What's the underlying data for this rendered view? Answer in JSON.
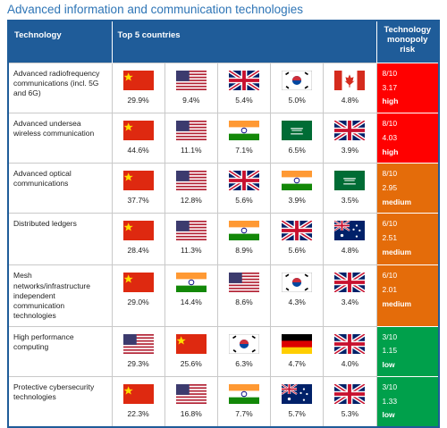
{
  "title": "Advanced information and communication technologies",
  "header": {
    "technology": "Technology",
    "countries": "Top 5 countries",
    "risk": "Technology monopoly risk"
  },
  "rows": [
    {
      "technology": "Advanced radiofrequency communications (incl. 5G and 6G)",
      "shares": [
        "29.9%",
        "9.4%",
        "5.4%",
        "5.0%",
        "4.8%"
      ],
      "risk_score": "8/10",
      "risk_index": "3.17",
      "risk_level": "high"
    },
    {
      "technology": "Advanced undersea wireless communication",
      "shares": [
        "44.6%",
        "11.1%",
        "7.1%",
        "6.5%",
        "3.9%"
      ],
      "risk_score": "8/10",
      "risk_index": "4.03",
      "risk_level": "high"
    },
    {
      "technology": "Advanced optical communications",
      "shares": [
        "37.7%",
        "12.8%",
        "5.6%",
        "3.9%",
        "3.5%"
      ],
      "risk_score": "8/10",
      "risk_index": "2.95",
      "risk_level": "medium"
    },
    {
      "technology": "Distributed ledgers",
      "shares": [
        "28.4%",
        "11.3%",
        "8.9%",
        "5.6%",
        "4.8%"
      ],
      "risk_score": "6/10",
      "risk_index": "2.51",
      "risk_level": "medium"
    },
    {
      "technology": "Mesh networks/infrastructure independent communication technologies",
      "shares": [
        "29.0%",
        "14.4%",
        "8.6%",
        "4.3%",
        "3.4%"
      ],
      "risk_score": "6/10",
      "risk_index": "2.01",
      "risk_level": "medium"
    },
    {
      "technology": "High performance computing",
      "shares": [
        "29.3%",
        "25.6%",
        "6.3%",
        "4.7%",
        "4.0%"
      ],
      "risk_score": "3/10",
      "risk_index": "1.15",
      "risk_level": "low"
    },
    {
      "technology": "Protective cybersecurity technologies",
      "shares": [
        "22.3%",
        "16.8%",
        "7.7%",
        "5.7%",
        "5.3%"
      ],
      "risk_score": "3/10",
      "risk_index": "1.33",
      "risk_level": "low"
    }
  ]
}
